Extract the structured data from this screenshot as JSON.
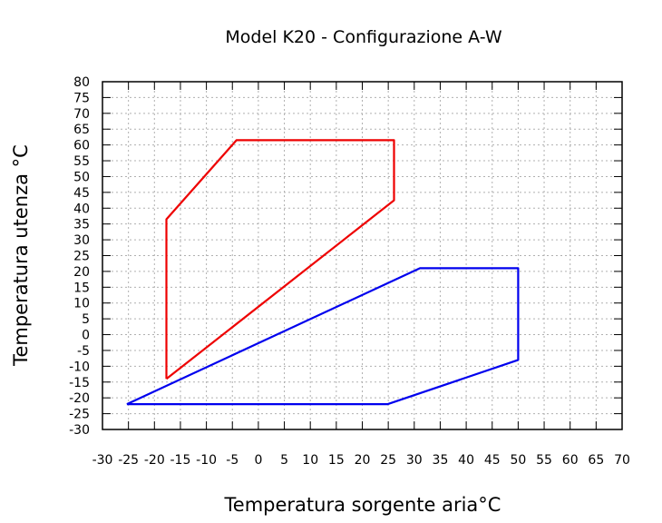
{
  "chart_data": {
    "type": "line",
    "title": "Model K20 - Configurazione A-W",
    "xlabel": "Temperatura sorgente aria°C",
    "ylabel": "Temperatura utenza °C",
    "xlim": [
      -30,
      70
    ],
    "ylim": [
      -30,
      80
    ],
    "x_ticks": [
      -30,
      -25,
      -20,
      -15,
      -10,
      -5,
      0,
      5,
      10,
      15,
      20,
      25,
      30,
      35,
      40,
      45,
      50,
      55,
      60,
      65,
      70
    ],
    "y_ticks": [
      -30,
      -25,
      -20,
      -15,
      -10,
      -5,
      0,
      5,
      10,
      15,
      20,
      25,
      30,
      35,
      40,
      45,
      50,
      55,
      60,
      65,
      70,
      75,
      80
    ],
    "grid": true,
    "legend": "none",
    "series": [
      {
        "color": "#ee0000",
        "x": [
          -17.7,
          -17.7,
          -4.2,
          26.1,
          26.1,
          -17.7
        ],
        "y": [
          -14,
          36.5,
          61.5,
          61.5,
          42.5,
          -14
        ]
      },
      {
        "color": "#0000ee",
        "x": [
          -25.3,
          31.1,
          50.0,
          50.0,
          24.9,
          -25.3
        ],
        "y": [
          -22,
          21,
          21,
          -8,
          -22,
          -22
        ]
      }
    ]
  }
}
